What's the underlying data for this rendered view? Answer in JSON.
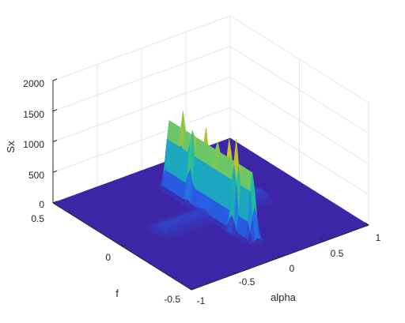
{
  "chart_data": {
    "type": "surface",
    "title": "",
    "xlabel": "alpha",
    "ylabel": "f",
    "zlabel": "Sx",
    "xlim": [
      -1,
      1
    ],
    "ylim": [
      -0.5,
      0.5
    ],
    "zlim": [
      0,
      2000
    ],
    "x_ticks": [
      "-1",
      "-0.5",
      "0",
      "0.5",
      "1"
    ],
    "y_ticks": [
      "-0.5",
      "0",
      "0.5"
    ],
    "z_ticks": [
      "0",
      "500",
      "1000",
      "1500",
      "2000"
    ],
    "grid": true,
    "colormap": "parula",
    "features": {
      "baseline": 0,
      "main_ridge": {
        "alpha_center": 0,
        "f_range": [
          -0.3,
          0.3
        ],
        "typical_height": 1100,
        "peaks": [
          {
            "alpha": -0.03,
            "f": -0.2,
            "Sx": 1550
          },
          {
            "alpha": 0.03,
            "f": -0.12,
            "Sx": 1420
          },
          {
            "alpha": 0.0,
            "f": -0.05,
            "Sx": 1250
          },
          {
            "alpha": 0.02,
            "f": 0.05,
            "Sx": 1350
          },
          {
            "alpha": -0.02,
            "f": 0.12,
            "Sx": 1250
          },
          {
            "alpha": 0.0,
            "f": 0.2,
            "Sx": 1400
          }
        ]
      },
      "secondary_ridge": {
        "f_center": 0,
        "alpha_range": [
          -0.6,
          0.6
        ],
        "typical_height": 120
      }
    }
  },
  "colors": {
    "background": "#ffffff",
    "floor": "#3e26a8",
    "grid": "#e6e6e6",
    "axis": "#262626"
  }
}
